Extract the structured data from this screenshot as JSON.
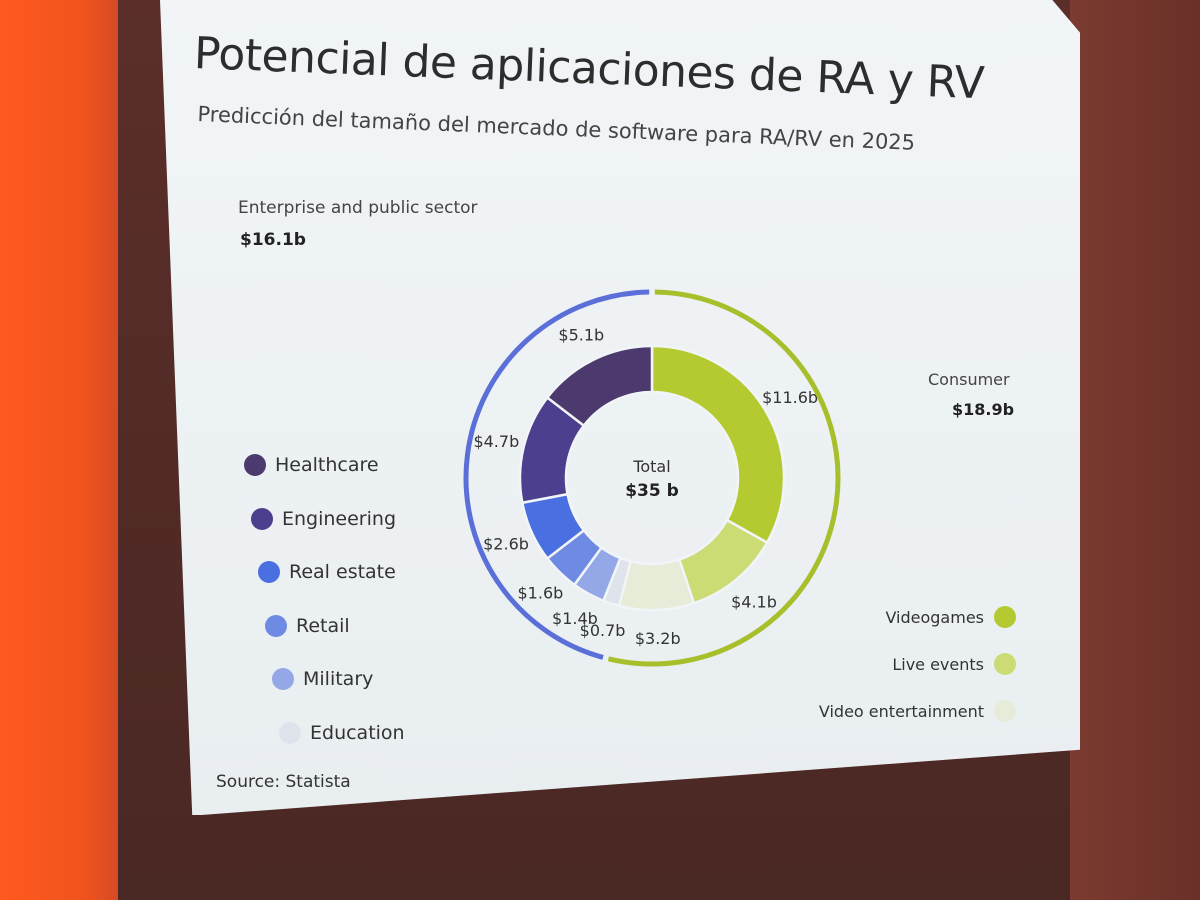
{
  "chart_data": {
    "type": "pie",
    "title": "Potencial de aplicaciones de RA y RV",
    "subtitle": "Predicción del tamaño del mercado de software para RA/RV en 2025",
    "center": {
      "label": "Total",
      "value": "$35 b"
    },
    "unit": "billion USD",
    "slices": [
      {
        "name": "Videogames",
        "value": 11.6,
        "label": "$11.6b",
        "color": "#b5c930",
        "group": "consumer"
      },
      {
        "name": "Live events",
        "value": 4.1,
        "label": "$4.1b",
        "color": "#ccdc75",
        "group": "consumer"
      },
      {
        "name": "Video entertainment",
        "value": 3.2,
        "label": "$3.2b",
        "color": "#e6ecd8",
        "group": "consumer"
      },
      {
        "name": "Education",
        "value": 0.7,
        "label": "$0.7b",
        "color": "#dfe3ec",
        "group": "enterprise"
      },
      {
        "name": "Military",
        "value": 1.4,
        "label": "$1.4b",
        "color": "#94a7e6",
        "group": "enterprise"
      },
      {
        "name": "Retail",
        "value": 1.6,
        "label": "$1.6b",
        "color": "#6f8ae2",
        "group": "enterprise"
      },
      {
        "name": "Real estate",
        "value": 2.6,
        "label": "$2.6b",
        "color": "#4a6fe0",
        "group": "enterprise"
      },
      {
        "name": "Engineering",
        "value": 4.7,
        "label": "$4.7b",
        "color": "#4b3f8e",
        "group": "enterprise"
      },
      {
        "name": "Healthcare",
        "value": 5.1,
        "label": "$5.1b",
        "color": "#4c3a6f",
        "group": "enterprise"
      }
    ],
    "groups": [
      {
        "id": "enterprise",
        "name": "Enterprise and public sector",
        "total": "$16.1b",
        "color": "#5a6fd8"
      },
      {
        "id": "consumer",
        "name": "Consumer",
        "total": "$18.9b",
        "color": "#a8bf2c"
      }
    ],
    "legend_left": [
      "Healthcare",
      "Engineering",
      "Real estate",
      "Retail",
      "Military",
      "Education"
    ],
    "legend_right": [
      "Videogames",
      "Live events",
      "Video entertainment"
    ]
  },
  "source": "Source: Statista"
}
